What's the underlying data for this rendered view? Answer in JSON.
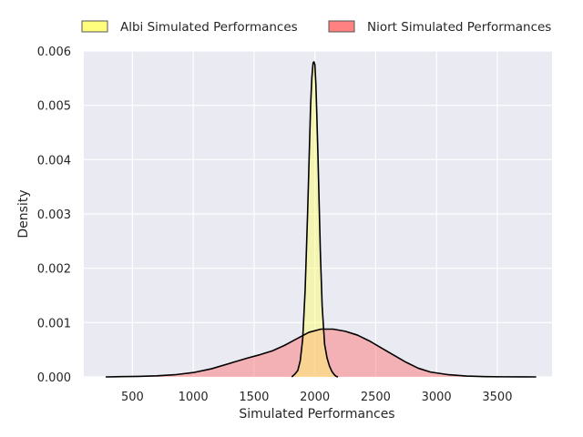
{
  "chart_data": {
    "type": "area",
    "xlabel": "Simulated Performances",
    "ylabel": "Density",
    "xlim": [
      100,
      3950
    ],
    "ylim": [
      0,
      0.006
    ],
    "xticks": [
      500,
      1000,
      1500,
      2000,
      2500,
      3000,
      3500
    ],
    "yticks": [
      0.0,
      0.001,
      0.002,
      0.003,
      0.004,
      0.005,
      0.006
    ],
    "xtick_labels": [
      "500",
      "1000",
      "1500",
      "2000",
      "2500",
      "3000",
      "3500"
    ],
    "ytick_labels": [
      "0.000",
      "0.001",
      "0.002",
      "0.003",
      "0.004",
      "0.005",
      "0.006"
    ],
    "grid": true,
    "legend_position": "top",
    "series": [
      {
        "name": "Albi Simulated Performances",
        "color": "#ffff66",
        "x": [
          1810,
          1835,
          1860,
          1880,
          1900,
          1920,
          1940,
          1955,
          1965,
          1975,
          1985,
          1992,
          2000,
          2008,
          2015,
          2025,
          2035,
          2045,
          2060,
          2080,
          2100,
          2120,
          2140,
          2160,
          2175,
          2190
        ],
        "values": [
          0.0,
          5e-05,
          0.00012,
          0.0003,
          0.0007,
          0.0016,
          0.003,
          0.0042,
          0.005,
          0.0055,
          0.00578,
          0.0058,
          0.00575,
          0.0054,
          0.0049,
          0.0041,
          0.0032,
          0.0023,
          0.0013,
          0.0006,
          0.00035,
          0.0002,
          0.0001,
          4e-05,
          1e-05,
          0.0
        ]
      },
      {
        "name": "Niort Simulated Performances",
        "color": "#ff6b6b",
        "x": [
          280,
          400,
          550,
          700,
          850,
          1000,
          1150,
          1300,
          1450,
          1550,
          1650,
          1750,
          1850,
          1950,
          2050,
          2150,
          2250,
          2350,
          2450,
          2550,
          2650,
          2750,
          2850,
          2950,
          3100,
          3250,
          3400,
          3550,
          3700,
          3820
        ],
        "values": [
          0.0,
          5e-06,
          1e-05,
          2e-05,
          4e-05,
          8e-05,
          0.00015,
          0.00025,
          0.00035,
          0.00041,
          0.00048,
          0.00058,
          0.0007,
          0.00082,
          0.00088,
          0.00088,
          0.00084,
          0.00077,
          0.00066,
          0.00053,
          0.0004,
          0.00027,
          0.00016,
          9e-05,
          4e-05,
          1.5e-05,
          5e-06,
          2e-06,
          5e-07,
          0.0
        ]
      }
    ]
  }
}
